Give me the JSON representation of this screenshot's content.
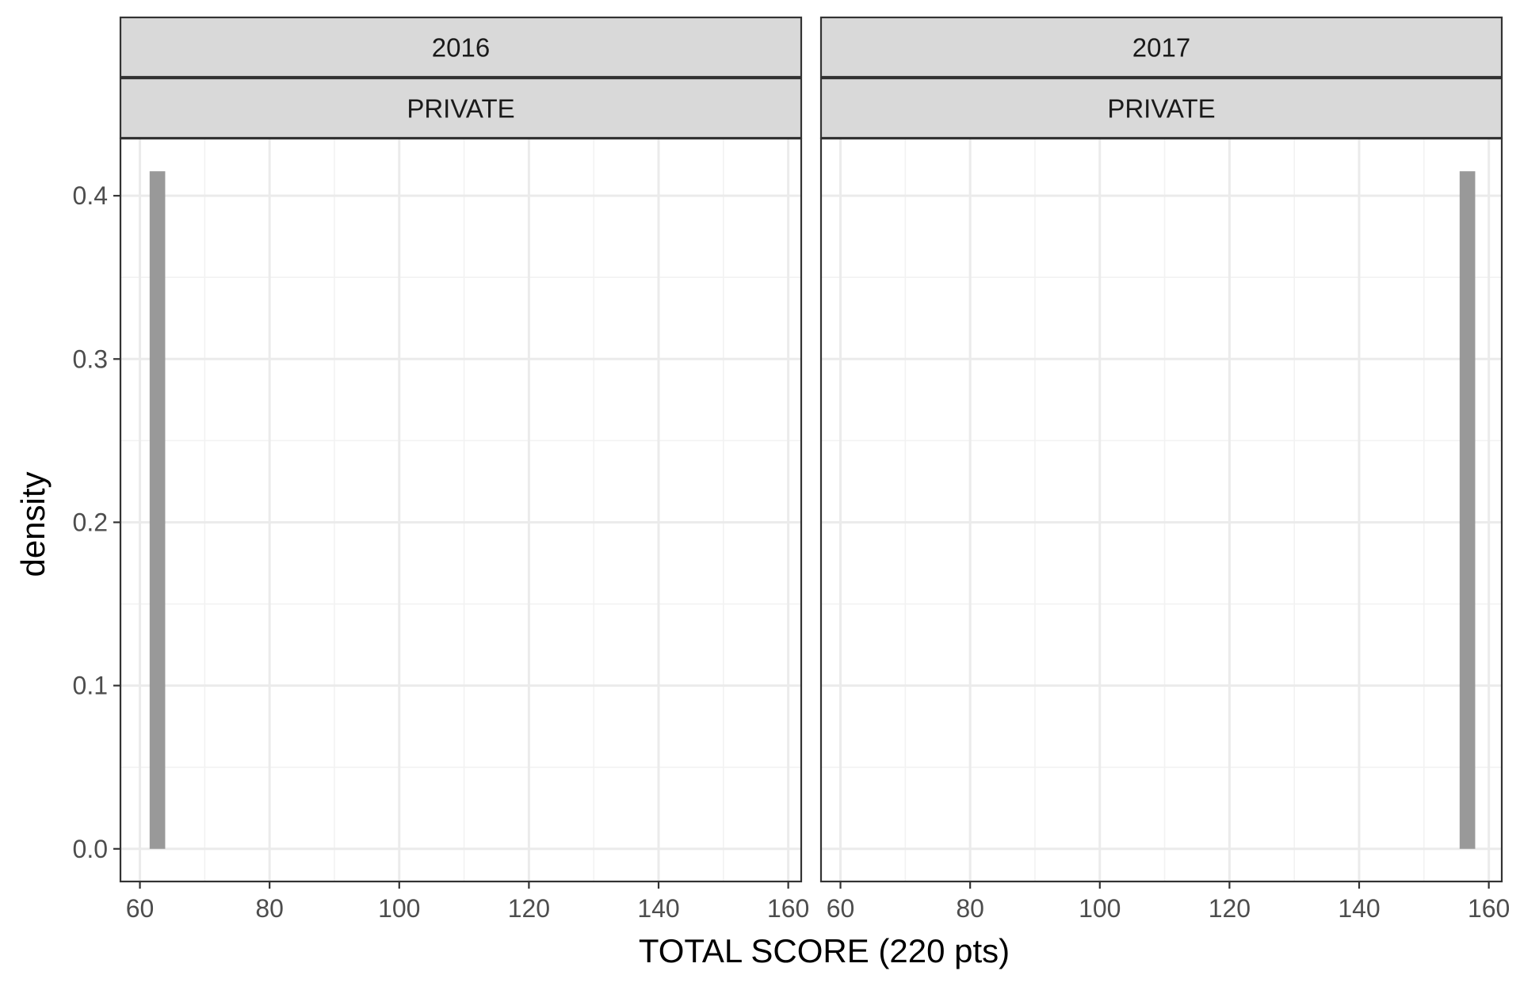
{
  "chart_data": {
    "type": "bar",
    "xlabel": "TOTAL SCORE (220 pts)",
    "ylabel": "density",
    "xlim": [
      57,
      162
    ],
    "ylim": [
      -0.02,
      0.435
    ],
    "x_ticks": [
      60,
      80,
      100,
      120,
      140,
      160
    ],
    "x_tick_labels": [
      "60",
      "80",
      "100",
      "120",
      "140",
      "160"
    ],
    "y_ticks": [
      0.0,
      0.1,
      0.2,
      0.3,
      0.4
    ],
    "y_tick_labels": [
      "0.0",
      "0.1",
      "0.2",
      "0.3",
      "0.4"
    ],
    "grid": true,
    "bar_color": "#999999",
    "panels": [
      {
        "strip_top": "2016",
        "strip_bottom": "PRIVATE",
        "bars": [
          {
            "xmin": 61.5,
            "xmax": 63.9,
            "density": 0.415
          }
        ]
      },
      {
        "strip_top": "2017",
        "strip_bottom": "PRIVATE",
        "bars": [
          {
            "xmin": 155.5,
            "xmax": 157.9,
            "density": 0.415
          }
        ]
      }
    ]
  },
  "colors": {
    "panel_border": "#333333",
    "strip_fill": "#d9d9d9",
    "grid_major": "#ebebeb",
    "grid_minor": "#f2f2f2",
    "tick_color": "#333333"
  }
}
